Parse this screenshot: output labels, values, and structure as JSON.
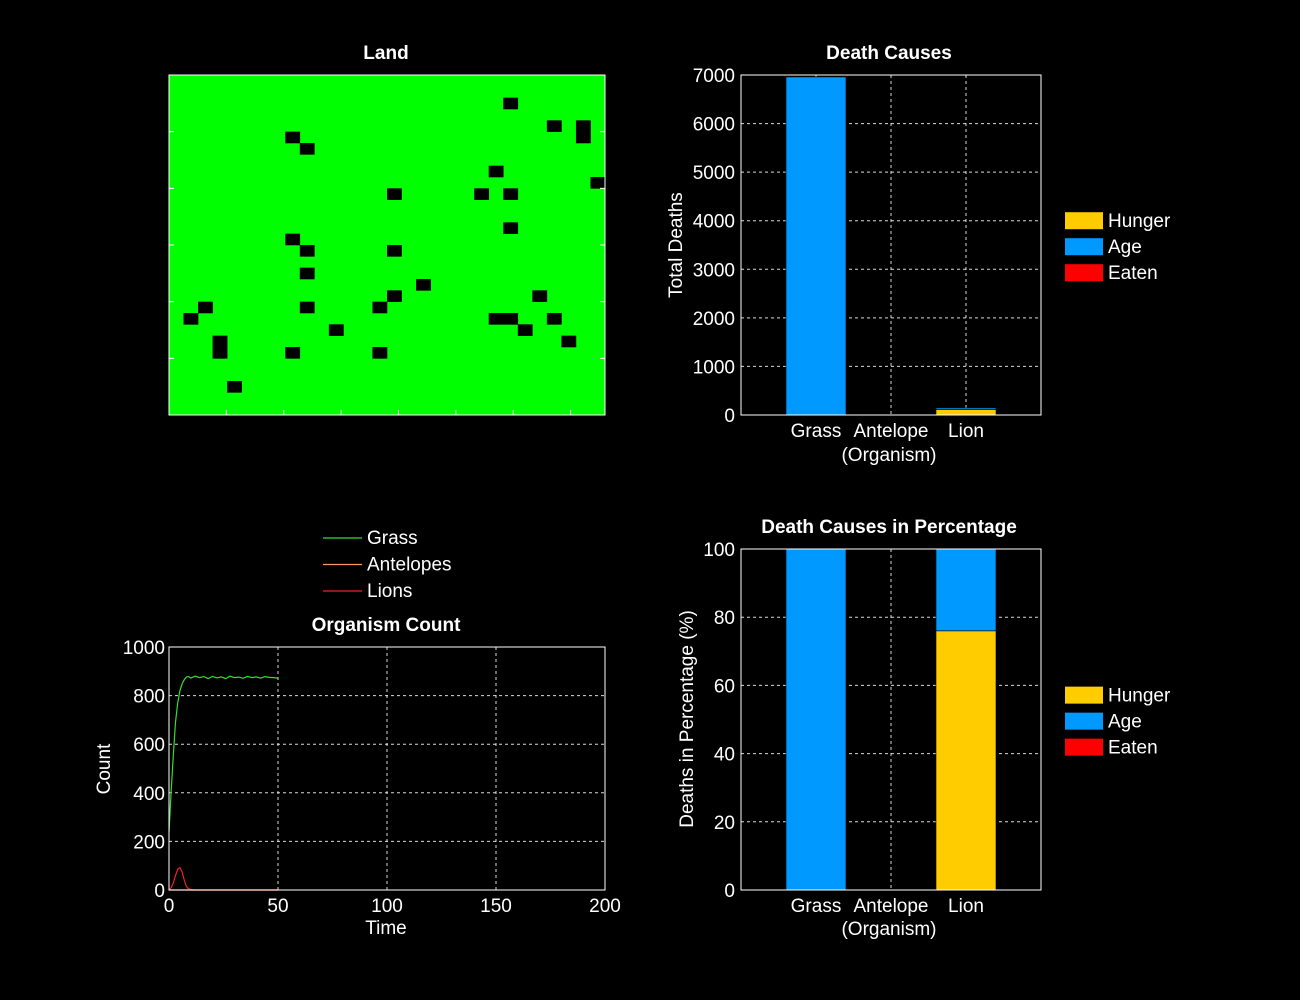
{
  "colors": {
    "background": "#000000",
    "land_green": "#00ff00",
    "land_cell": "#000000",
    "hunger": "#ffcc00",
    "age": "#0099ff",
    "eaten": "#ff0000",
    "grass_line": "#33dd33",
    "antelope_line": "#ff9966",
    "lion_line": "#ee2222"
  },
  "chart_data": [
    {
      "id": "land",
      "type": "heatmap",
      "title": "Land",
      "grid_cols": 30,
      "grid_rows": 30,
      "empty_cells": [
        [
          23,
          2
        ],
        [
          26,
          4
        ],
        [
          28,
          4
        ],
        [
          28,
          5
        ],
        [
          8,
          5
        ],
        [
          9,
          6
        ],
        [
          22,
          8
        ],
        [
          15,
          10
        ],
        [
          21,
          10
        ],
        [
          23,
          10
        ],
        [
          29,
          9
        ],
        [
          23,
          13
        ],
        [
          8,
          14
        ],
        [
          9,
          15
        ],
        [
          15,
          15
        ],
        [
          9,
          17
        ],
        [
          17,
          18
        ],
        [
          15,
          19
        ],
        [
          25,
          19
        ],
        [
          2,
          20
        ],
        [
          9,
          20
        ],
        [
          14,
          20
        ],
        [
          1,
          21
        ],
        [
          22,
          21
        ],
        [
          23,
          21
        ],
        [
          26,
          21
        ],
        [
          24,
          22
        ],
        [
          11,
          22
        ],
        [
          3,
          23
        ],
        [
          3,
          24
        ],
        [
          27,
          23
        ],
        [
          8,
          24
        ],
        [
          14,
          24
        ],
        [
          4,
          27
        ]
      ]
    },
    {
      "id": "death_causes",
      "type": "bar",
      "stacked": true,
      "title": "Death Causes",
      "xlabel": "(Organism)",
      "ylabel": "Total Deaths",
      "categories": [
        "Grass",
        "Antelope",
        "Lion"
      ],
      "ylim": [
        0,
        7000
      ],
      "yticks": [
        0,
        1000,
        2000,
        3000,
        4000,
        5000,
        6000,
        7000
      ],
      "grid": true,
      "legend_position": "right",
      "series": [
        {
          "name": "Hunger",
          "values": [
            0,
            0,
            110
          ]
        },
        {
          "name": "Age",
          "values": [
            6960,
            0,
            35
          ]
        },
        {
          "name": "Eaten",
          "values": [
            0,
            0,
            0
          ]
        }
      ]
    },
    {
      "id": "organism_count",
      "type": "line",
      "title": "Organism Count",
      "xlabel": "Time",
      "ylabel": "Count",
      "xlim": [
        0,
        200
      ],
      "ylim": [
        0,
        1000
      ],
      "xticks": [
        0,
        50,
        100,
        150,
        200
      ],
      "yticks": [
        0,
        200,
        400,
        600,
        800,
        1000
      ],
      "grid": true,
      "legend_position": "top",
      "series": [
        {
          "name": "Grass",
          "x": [
            0,
            1,
            2,
            3,
            4,
            5,
            6,
            7,
            8,
            9,
            10,
            12,
            14,
            16,
            18,
            20,
            22,
            24,
            26,
            28,
            30,
            32,
            34,
            36,
            38,
            40,
            42,
            44,
            46,
            48,
            50
          ],
          "y": [
            240,
            410,
            560,
            690,
            770,
            820,
            848,
            866,
            876,
            878,
            872,
            880,
            874,
            878,
            870,
            879,
            873,
            877,
            870,
            880,
            874,
            876,
            871,
            879,
            874,
            877,
            872,
            878,
            875,
            874,
            872
          ]
        },
        {
          "name": "Antelopes",
          "x": [
            0,
            50
          ],
          "y": [
            0,
            0
          ]
        },
        {
          "name": "Lions",
          "x": [
            0,
            1,
            2,
            3,
            4,
            5,
            6,
            7,
            8,
            9,
            10,
            12,
            15,
            20,
            30,
            40,
            50
          ],
          "y": [
            0,
            10,
            30,
            60,
            85,
            92,
            75,
            40,
            15,
            5,
            2,
            0,
            0,
            0,
            0,
            0,
            0
          ]
        }
      ]
    },
    {
      "id": "death_causes_pct",
      "type": "bar",
      "stacked": true,
      "title": "Death Causes in Percentage",
      "xlabel": "(Organism)",
      "ylabel": "Deaths in Percentage (%)",
      "categories": [
        "Grass",
        "Antelope",
        "Lion"
      ],
      "ylim": [
        0,
        100
      ],
      "yticks": [
        0,
        20,
        40,
        60,
        80,
        100
      ],
      "grid": true,
      "legend_position": "right",
      "series": [
        {
          "name": "Hunger",
          "values": [
            0,
            0,
            76
          ]
        },
        {
          "name": "Age",
          "values": [
            100,
            0,
            24
          ]
        },
        {
          "name": "Eaten",
          "values": [
            0,
            0,
            0
          ]
        }
      ]
    }
  ]
}
